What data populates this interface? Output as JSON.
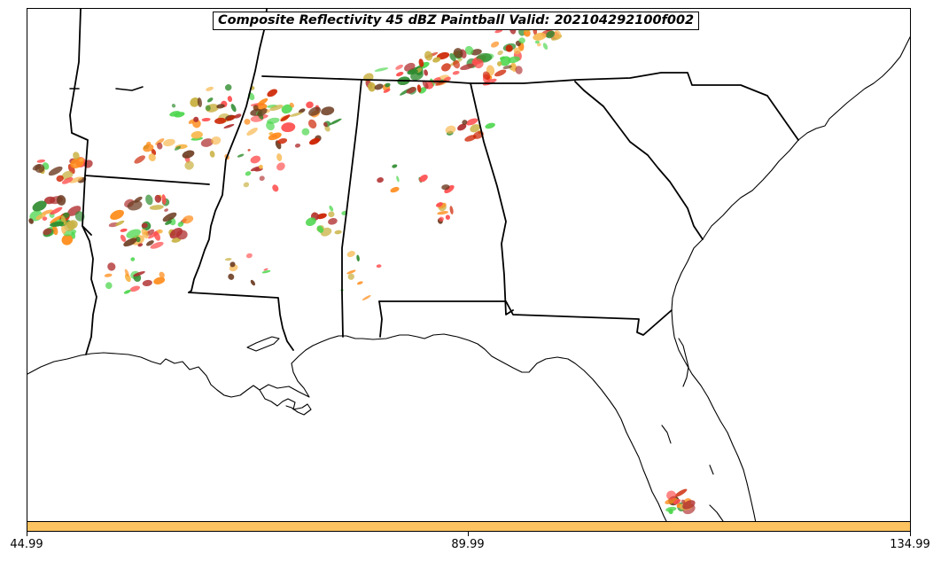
{
  "title": "Composite Reflectivity 45 dBZ Paintball Valid: 202104292100f002",
  "colorbar": {
    "color": "#FDC361",
    "tick_labels": [
      "44.99",
      "89.99",
      "134.99"
    ]
  },
  "paintball_colors": [
    "#ff4d4d",
    "#b03030",
    "#ff8c1a",
    "#f7b64a",
    "#c8b040",
    "#4cd64c",
    "#2e8b2e",
    "#6b3a1f",
    "#cc2200"
  ]
}
